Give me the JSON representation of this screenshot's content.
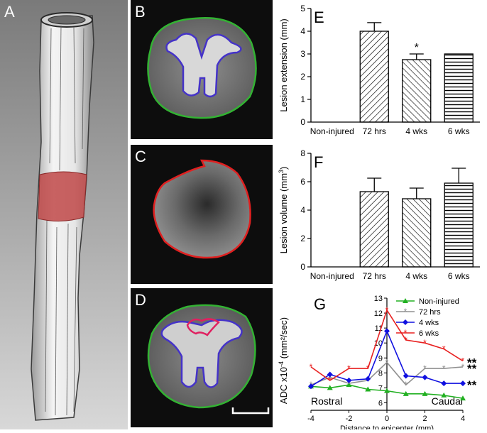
{
  "panel_labels": {
    "a": "A",
    "b": "B",
    "c": "C",
    "d": "D",
    "e": "E",
    "f": "F",
    "g": "G"
  },
  "colors": {
    "lesion_fill": "#c04848",
    "cord_outline": "#33b233",
    "gray_matter_outline": "#4533c8",
    "lesion_outline": "#e02020",
    "mri_background": "#0d0d0d"
  },
  "chart_data": [
    {
      "panel": "E",
      "type": "bar",
      "ylabel": "Lesion extension (mm)",
      "ylim": [
        0,
        5
      ],
      "yticks": [
        "0",
        "1",
        "2",
        "3",
        "4",
        "5"
      ],
      "categories": [
        "Non-injured",
        "72 hrs",
        "4 wks",
        "6 wks"
      ],
      "values": [
        0,
        4.0,
        2.75,
        3.0
      ],
      "errors": [
        0,
        0.38,
        0.25,
        0
      ],
      "patterns": [
        "none",
        "diag-right",
        "diag-left",
        "horizontal"
      ],
      "annotations": [
        {
          "category": "4 wks",
          "text": "*"
        }
      ]
    },
    {
      "panel": "F",
      "type": "bar",
      "ylabel": "Lesion volume (mm",
      "ylabel_sup": "3",
      "ylabel_end": ")",
      "ylim": [
        0,
        8
      ],
      "yticks": [
        "0",
        "2",
        "4",
        "6",
        "8"
      ],
      "categories": [
        "Non-injured",
        "72 hrs",
        "4 wks",
        "6 wks"
      ],
      "values": [
        0,
        5.3,
        4.8,
        5.9
      ],
      "errors": [
        0,
        0.95,
        0.75,
        1.05
      ],
      "patterns": [
        "none",
        "diag-right",
        "diag-left",
        "horizontal"
      ]
    },
    {
      "panel": "G",
      "type": "line",
      "ylabel": "ADC x10",
      "ylabel_sup": "-4",
      "ylabel_end": " (mm²/sec)",
      "xlabel": "Distance to epicenter (mm)",
      "xlim": [
        -4,
        4
      ],
      "ylim": [
        5.5,
        13
      ],
      "xticks": [
        "-4",
        "-2",
        "0",
        "2",
        "4"
      ],
      "yticks": [
        "6",
        "7",
        "8",
        "9",
        "10",
        "11",
        "12",
        "13"
      ],
      "left_text": "Rostral",
      "right_text": "Caudal",
      "x": [
        -4,
        -3,
        -2,
        -1,
        0,
        1,
        2,
        3,
        4
      ],
      "series": [
        {
          "name": "Non-injured",
          "color": "#22b022",
          "marker": "triangle",
          "values": [
            7.1,
            7.0,
            7.2,
            6.9,
            6.8,
            6.6,
            6.6,
            6.5,
            6.3
          ]
        },
        {
          "name": "72 hrs",
          "color": "#909090",
          "marker": "star",
          "values": [
            7.2,
            7.7,
            7.3,
            7.5,
            8.7,
            7.2,
            8.3,
            8.3,
            8.4
          ]
        },
        {
          "name": "4 wks",
          "color": "#1010e0",
          "marker": "diamond",
          "values": [
            7.1,
            7.9,
            7.5,
            7.6,
            10.8,
            7.8,
            7.7,
            7.3,
            7.3
          ]
        },
        {
          "name": "6 wks",
          "color": "#e82020",
          "marker": "star",
          "values": [
            8.4,
            7.5,
            8.3,
            8.3,
            12.2,
            10.2,
            10.0,
            9.6,
            8.8
          ]
        }
      ],
      "significance": [
        {
          "series": "72 hrs",
          "text": "**"
        },
        {
          "series": "4 wks",
          "text": "**"
        },
        {
          "series": "6 wks",
          "text": "**"
        }
      ]
    }
  ]
}
